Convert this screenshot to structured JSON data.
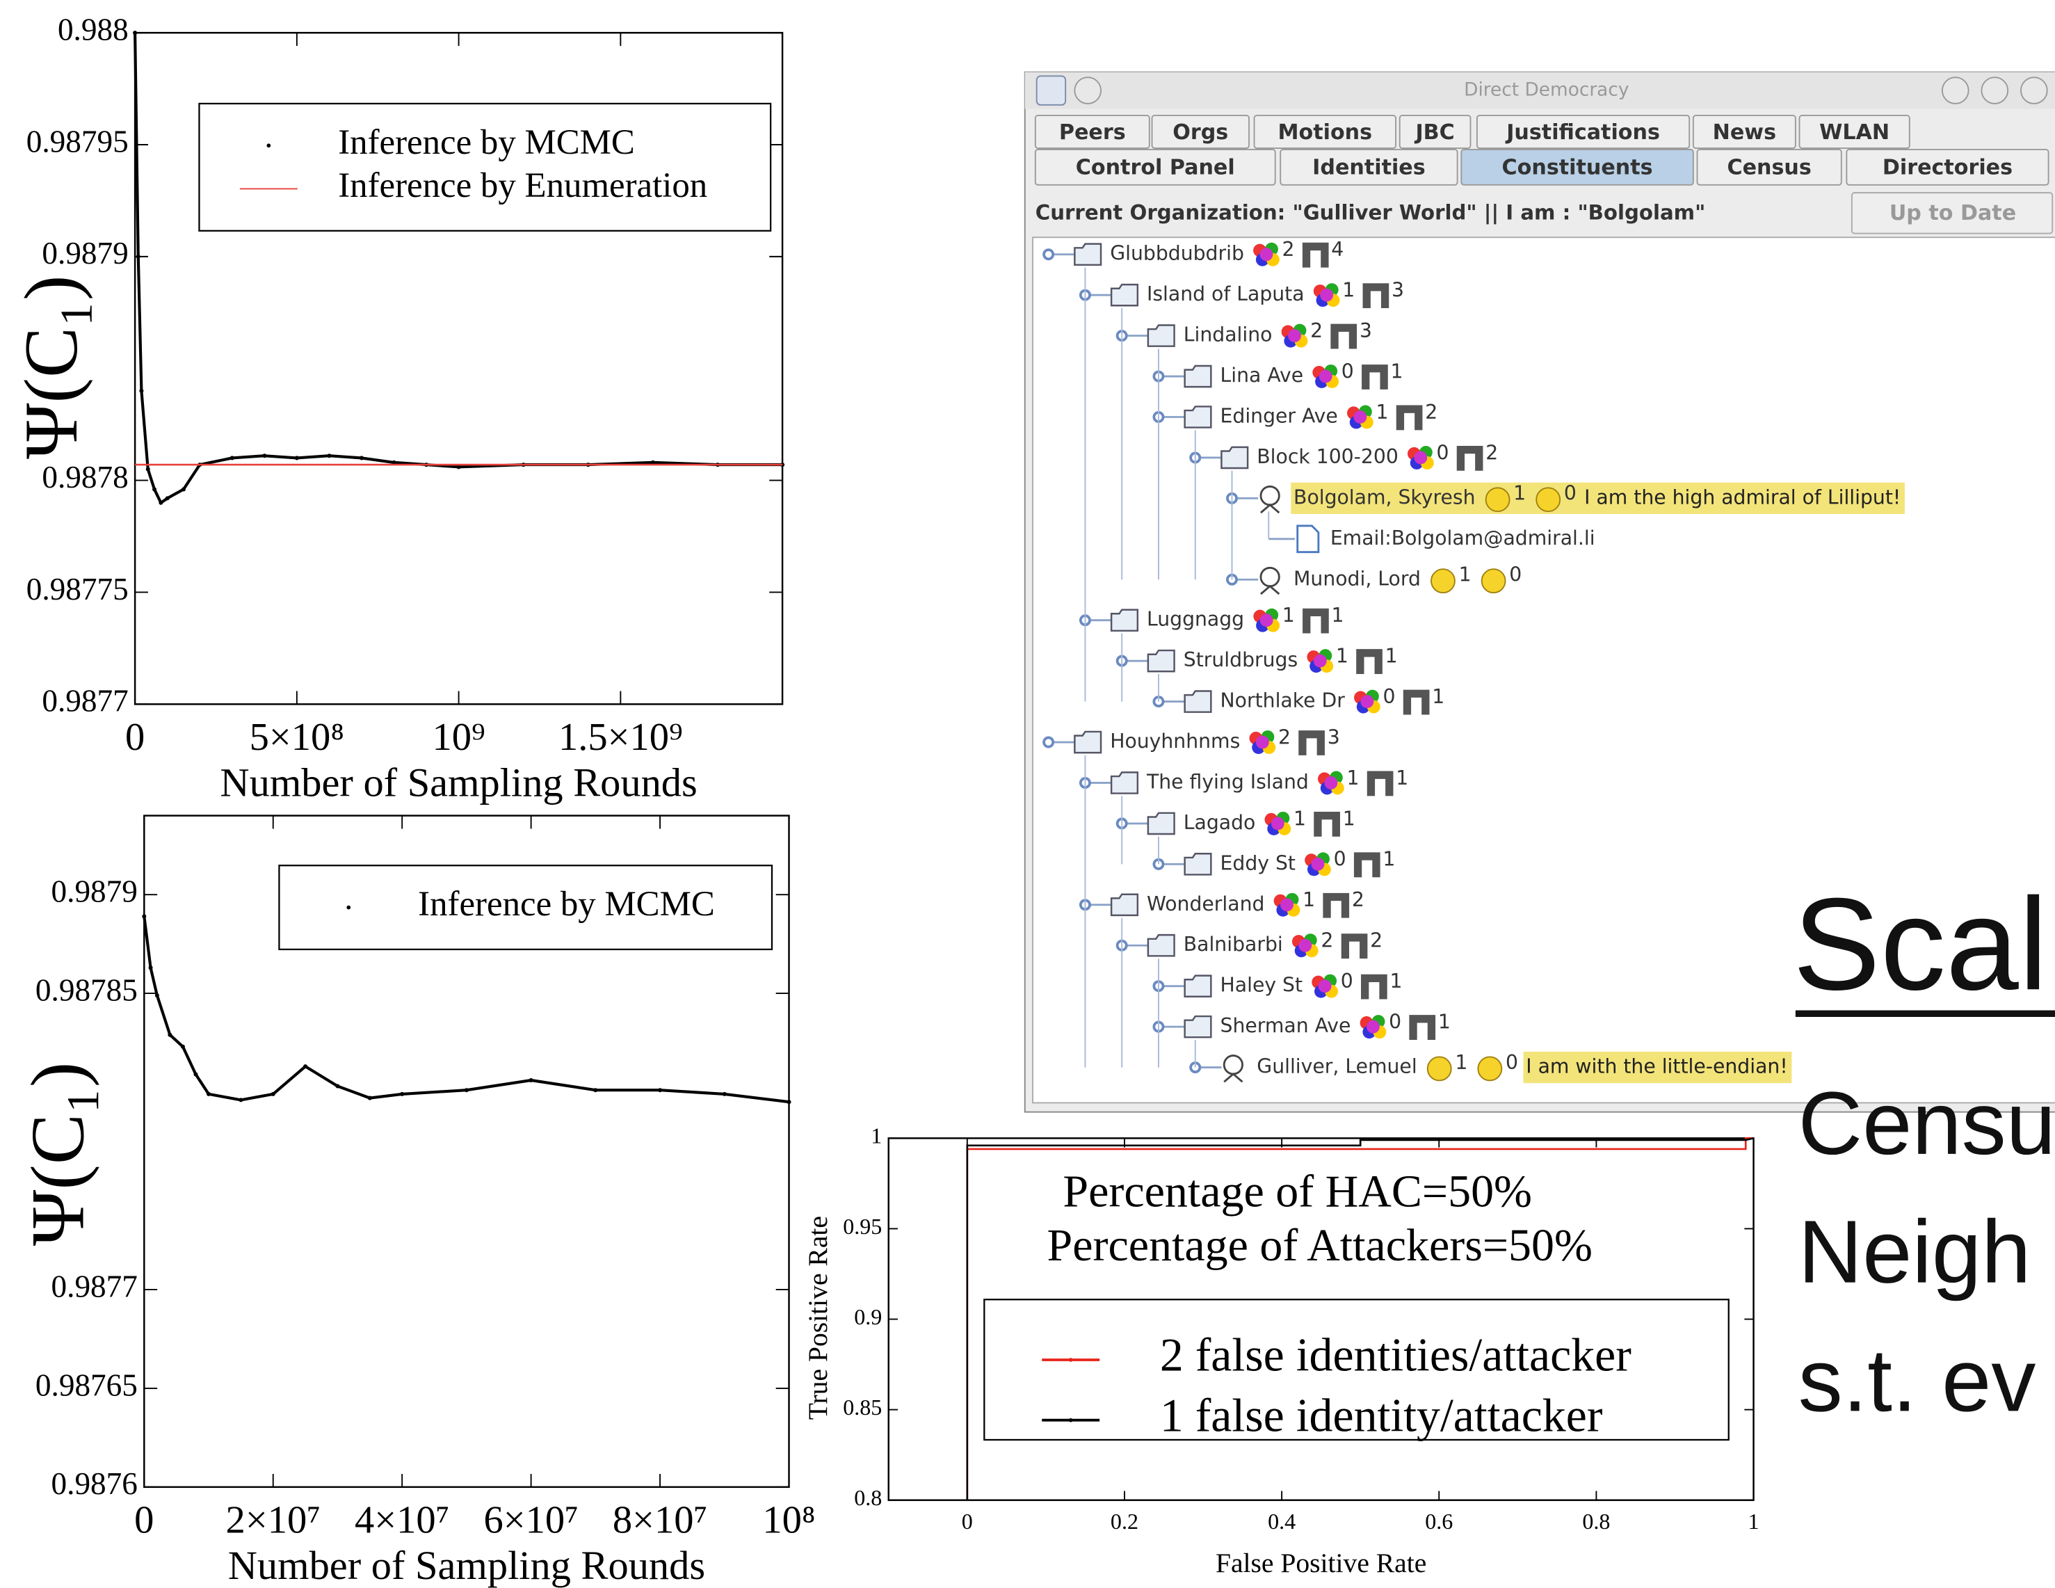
{
  "chart_data": [
    {
      "type": "line",
      "ylabel": "Ψ(C₁)",
      "xlabel": "Number of Sampling Rounds",
      "legend": "upper right",
      "xlim": [
        0,
        2000000000
      ],
      "xticks": [
        0,
        {
          "value": 500000000,
          "label": "5×10⁸"
        },
        {
          "value": 1000000000,
          "label": "10⁹"
        },
        {
          "value": 1500000000,
          "label": "1.5×10⁹"
        }
      ],
      "ylim": [
        0.9877,
        0.988
      ],
      "yticks": [
        0.9877,
        0.98775,
        0.9878,
        0.9879,
        0.98795,
        0.988
      ],
      "series": [
        {
          "name": "Inference by MCMC",
          "color": "#000000",
          "marker": "dot",
          "x": [
            0,
            10000000,
            20000000,
            40000000,
            60000000,
            80000000,
            100000000,
            150000000,
            200000000,
            300000000,
            400000000,
            500000000,
            600000000,
            700000000,
            800000000,
            900000000,
            1000000000,
            1200000000,
            1400000000,
            1600000000,
            1800000000,
            2000000000
          ],
          "values": [
            0.988,
            0.9879,
            0.98784,
            0.987805,
            0.987796,
            0.98779,
            0.987792,
            0.987796,
            0.987807,
            0.98781,
            0.987811,
            0.98781,
            0.987811,
            0.98781,
            0.987808,
            0.987807,
            0.987806,
            0.987807,
            0.987807,
            0.987808,
            0.987807,
            0.987807
          ]
        },
        {
          "name": "Inference by Enumeration",
          "color": "#e8413a",
          "x": [
            0,
            2000000000
          ],
          "values": [
            0.987807,
            0.987807
          ]
        }
      ]
    },
    {
      "type": "line",
      "ylabel": "Ψ(C₁)",
      "xlabel": "Number of Sampling Rounds",
      "legend": "upper right",
      "xlim": [
        0,
        100000000
      ],
      "xticks": [
        0,
        {
          "value": 20000000,
          "label": "2×10⁷"
        },
        {
          "value": 40000000,
          "label": "4×10⁷"
        },
        {
          "value": 60000000,
          "label": "6×10⁷"
        },
        {
          "value": 80000000,
          "label": "8×10⁷"
        },
        {
          "value": 100000000,
          "label": "10⁸"
        }
      ],
      "ylim": [
        0.9876,
        0.98794
      ],
      "yticks": [
        0.9876,
        0.98765,
        0.9877,
        0.98785,
        0.9879
      ],
      "series": [
        {
          "name": "Inference by MCMC",
          "color": "#000000",
          "marker": "dot",
          "x": [
            0,
            1000000,
            2000000,
            4000000,
            6000000,
            8000000,
            10000000,
            15000000,
            20000000,
            25000000,
            30000000,
            35000000,
            40000000,
            50000000,
            60000000,
            70000000,
            80000000,
            90000000,
            100000000
          ],
          "values": [
            0.987889,
            0.987863,
            0.987849,
            0.987829,
            0.987823,
            0.987809,
            0.987799,
            0.987796,
            0.987799,
            0.987813,
            0.987803,
            0.987797,
            0.987799,
            0.987801,
            0.987806,
            0.987801,
            0.987801,
            0.987799,
            0.987795
          ]
        }
      ]
    },
    {
      "type": "line",
      "title": "Percentage of HAC=50%",
      "subtitle": "Percentage of Attackers=50%",
      "xlabel": "False Positive Rate",
      "ylabel": "True Positive Rate",
      "legend": "lower right",
      "xlim": [
        -0.1,
        1
      ],
      "xticks": [
        0,
        0.2,
        0.4,
        0.6,
        0.8,
        1
      ],
      "ylim": [
        0.8,
        1
      ],
      "yticks": [
        0.8,
        0.85,
        0.9,
        0.95,
        1
      ],
      "series": [
        {
          "name": "2 false identities/attacker",
          "color": "#e8231a",
          "x": [
            0,
            0,
            0.99,
            0.99,
            1
          ],
          "values": [
            0.8,
            0.994,
            0.994,
            1,
            1
          ]
        },
        {
          "name": "1 false identity/attacker",
          "color": "#000000",
          "x": [
            0,
            0,
            0.5,
            0.5,
            0.99,
            1
          ],
          "values": [
            0.8,
            0.996,
            0.996,
            0.999,
            0.999,
            1
          ]
        }
      ]
    }
  ],
  "app": {
    "title": "Direct Democracy",
    "tabs_row1": [
      {
        "label": "Peers"
      },
      {
        "label": "Orgs"
      },
      {
        "label": "Motions"
      },
      {
        "label": "JBC"
      },
      {
        "label": "Justifications"
      },
      {
        "label": "News"
      },
      {
        "label": "WLAN"
      }
    ],
    "tabs_row2": [
      {
        "label": "Control Panel"
      },
      {
        "label": "Identities"
      },
      {
        "label": "Constituents",
        "selected": true
      },
      {
        "label": "Census"
      },
      {
        "label": "Directories"
      }
    ],
    "status": "Current Organization: \"Gulliver World\" || I am : \"Bolgolam\"",
    "button": "Up to Date",
    "tree": [
      {
        "kind": "folder",
        "label": "Glubbdubdrib",
        "count_a": "2",
        "count_b": "4",
        "children": [
          {
            "kind": "folder",
            "label": "Island of Laputa",
            "count_a": "1",
            "count_b": "3",
            "children": [
              {
                "kind": "folder",
                "label": "Lindalino",
                "count_a": "2",
                "count_b": "3",
                "children": [
                  {
                    "kind": "folder",
                    "label": "Lina Ave",
                    "count_a": "0",
                    "count_b": "1"
                  },
                  {
                    "kind": "folder",
                    "label": "Edinger Ave",
                    "count_a": "1",
                    "count_b": "2",
                    "children": [
                      {
                        "kind": "folder",
                        "label": "Block 100-200",
                        "count_a": "0",
                        "count_b": "2",
                        "children": [
                          {
                            "kind": "person",
                            "label": "Bolgolam, Skyresh",
                            "count_a": "1",
                            "count_b": "0",
                            "note": "I am the high admiral of Lilliput!",
                            "selected": true,
                            "children": [
                              {
                                "kind": "file",
                                "label": "Email:Bolgolam@admiral.li"
                              }
                            ]
                          },
                          {
                            "kind": "person",
                            "label": "Munodi, Lord",
                            "count_a": "1",
                            "count_b": "0"
                          }
                        ]
                      }
                    ]
                  }
                ]
              }
            ]
          },
          {
            "kind": "folder",
            "label": "Luggnagg",
            "count_a": "1",
            "count_b": "1",
            "children": [
              {
                "kind": "folder",
                "label": "Struldbrugs",
                "count_a": "1",
                "count_b": "1",
                "children": [
                  {
                    "kind": "folder",
                    "label": "Northlake Dr",
                    "count_a": "0",
                    "count_b": "1"
                  }
                ]
              }
            ]
          }
        ]
      },
      {
        "kind": "folder",
        "label": "Houyhnhnms",
        "count_a": "2",
        "count_b": "3",
        "children": [
          {
            "kind": "folder",
            "label": "The flying Island",
            "count_a": "1",
            "count_b": "1",
            "children": [
              {
                "kind": "folder",
                "label": "Lagado",
                "count_a": "1",
                "count_b": "1",
                "children": [
                  {
                    "kind": "folder",
                    "label": "Eddy St",
                    "count_a": "0",
                    "count_b": "1"
                  }
                ]
              }
            ]
          },
          {
            "kind": "folder",
            "label": "Wonderland",
            "count_a": "1",
            "count_b": "2",
            "children": [
              {
                "kind": "folder",
                "label": "Balnibarbi",
                "count_a": "2",
                "count_b": "2",
                "children": [
                  {
                    "kind": "folder",
                    "label": "Haley St",
                    "count_a": "0",
                    "count_b": "1"
                  },
                  {
                    "kind": "folder",
                    "label": "Sherman Ave",
                    "count_a": "0",
                    "count_b": "1",
                    "children": [
                      {
                        "kind": "person",
                        "label": "Gulliver, Lemuel",
                        "count_a": "1",
                        "count_b": "0",
                        "note": "I am with the little-endian!"
                      }
                    ]
                  }
                ]
              }
            ]
          }
        ]
      }
    ]
  },
  "slide": {
    "heading": "Scal",
    "lines": [
      "Censu",
      "Neigh",
      "s.t. ev"
    ]
  }
}
